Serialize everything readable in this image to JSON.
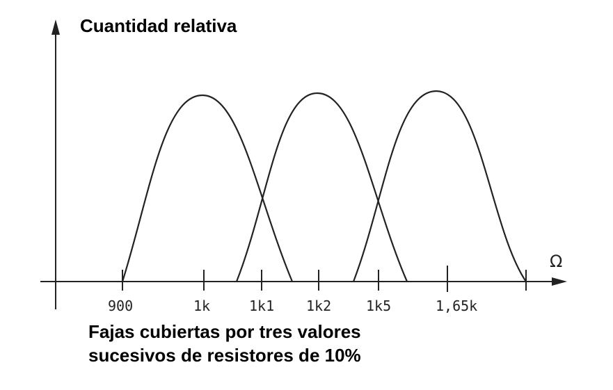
{
  "y_axis_label": "Cuantidad relativa",
  "x_axis_unit": "Ω",
  "caption": {
    "line1": "Fajas cubiertas por tres valores",
    "line2": "sucesivos de resistores de 10%"
  },
  "ticks": [
    "900",
    "1k",
    "1k1",
    "1k2",
    "1k5",
    "1,65k"
  ],
  "colors": {
    "ink": "#222222",
    "background": "#ffffff"
  }
}
